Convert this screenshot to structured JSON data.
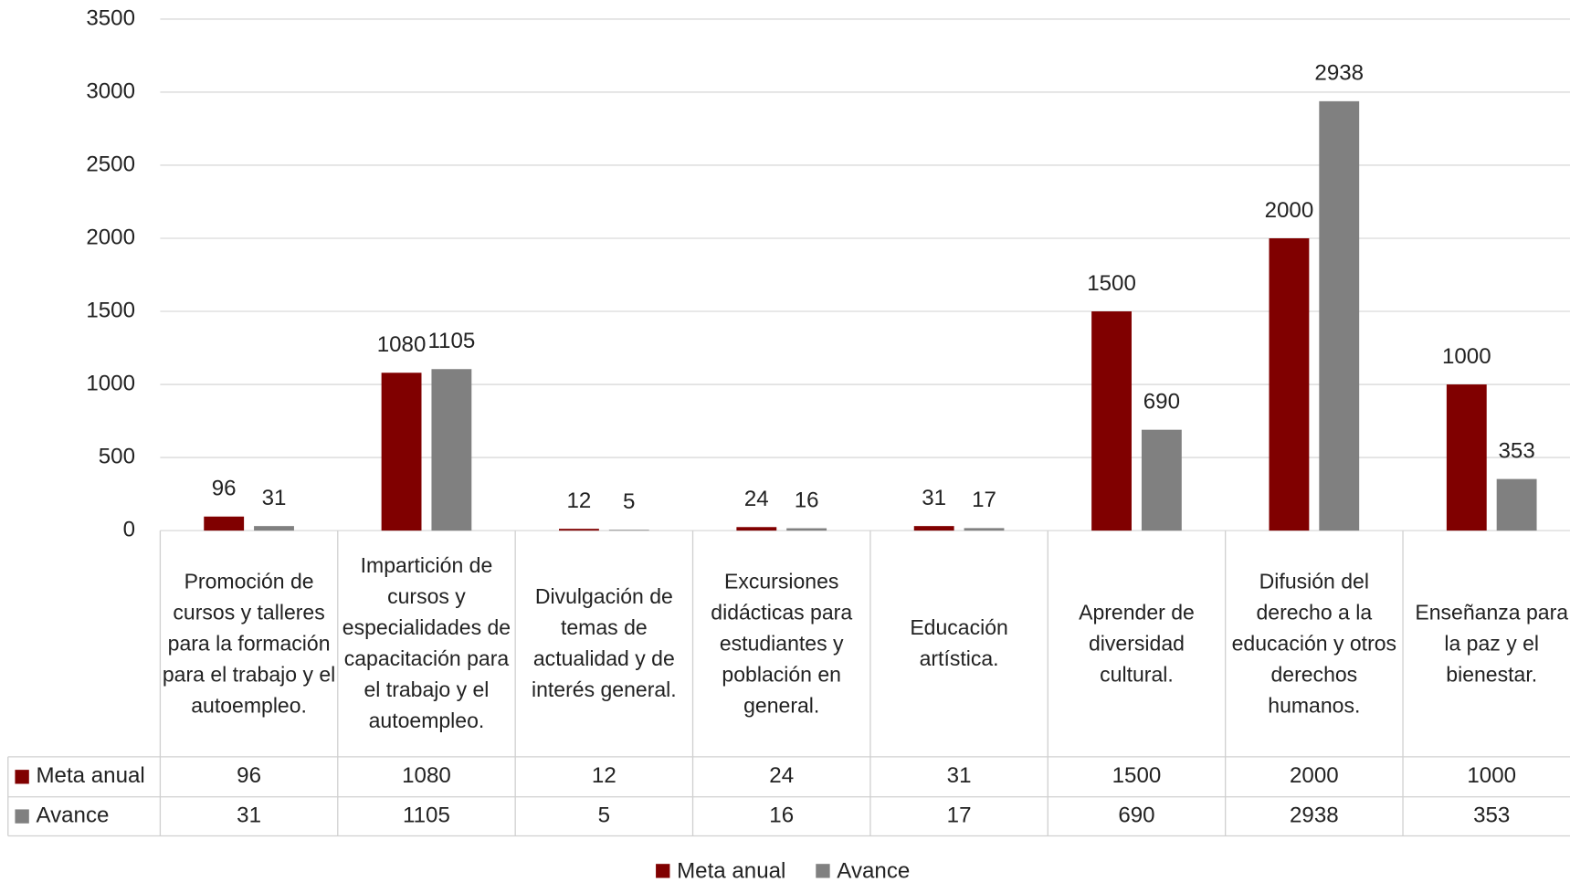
{
  "chart_data": {
    "type": "bar",
    "categories": [
      "Promoción de cursos y talleres para la formación para el trabajo y el autoempleo.",
      "Impartición de cursos y especialidades de capacitación para el trabajo y el autoempleo.",
      "Divulgación de temas de actualidad y de interés general.",
      "Excursiones didácticas para estudiantes y población en general.",
      "Educación artística.",
      "Aprender de diversidad cultural.",
      "Difusión del derecho a la educación y otros derechos humanos.",
      "Enseñanza para la paz y el bienestar."
    ],
    "series": [
      {
        "name": "Meta anual",
        "color": "#800000",
        "values": [
          96,
          1080,
          12,
          24,
          31,
          1500,
          2000,
          1000
        ]
      },
      {
        "name": "Avance",
        "color": "#808080",
        "values": [
          31,
          1105,
          5,
          16,
          17,
          690,
          2938,
          353
        ]
      }
    ],
    "ylim": [
      0,
      3500
    ],
    "yticks": [
      0,
      500,
      1000,
      1500,
      2000,
      2500,
      3000,
      3500
    ],
    "grid": true,
    "legend": "bottom"
  }
}
